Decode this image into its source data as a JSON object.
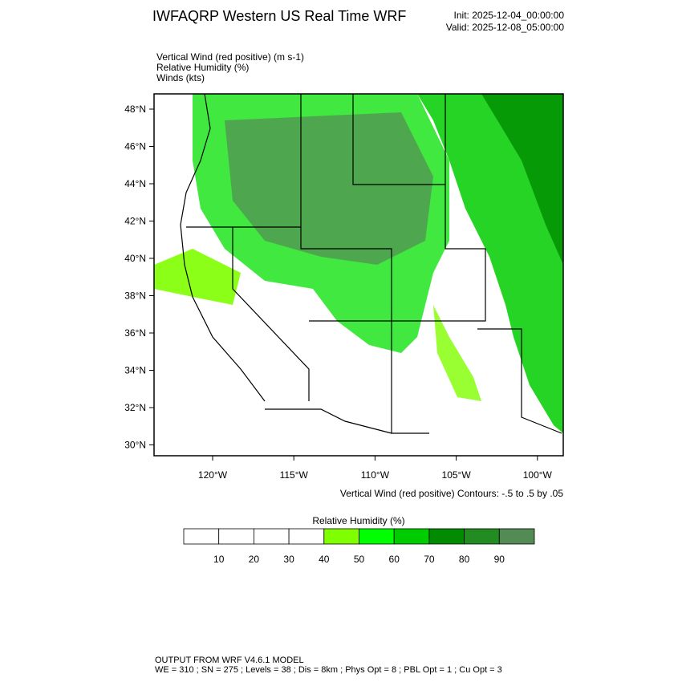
{
  "header": {
    "title": "IWFAQRP Western US Real Time WRF",
    "init": "Init: 2025-12-04_00:00:00",
    "valid": "Valid: 2025-12-08_05:00:00"
  },
  "fields": [
    "Vertical Wind (red positive)   (m s-1)",
    "Relative Humidity   (%)",
    "Winds   (kts)"
  ],
  "map": {
    "lat_labels": [
      "48°N",
      "46°N",
      "44°N",
      "42°N",
      "40°N",
      "38°N",
      "36°N",
      "34°N",
      "32°N",
      "30°N"
    ],
    "lon_labels": [
      "120°W",
      "115°W",
      "110°W",
      "105°W",
      "100°W"
    ],
    "contour_note": "Vertical Wind (red positive) Contours: -.5 to .5 by .05"
  },
  "colorbar": {
    "title": "Relative Humidity  (%)",
    "levels": [
      10,
      20,
      30,
      40,
      50,
      60,
      70,
      80,
      90
    ],
    "colors": [
      "#ffffff",
      "#ffffff",
      "#ffffff",
      "#ffffff",
      "#80ff00",
      "#00ff00",
      "#00cd00",
      "#008b00",
      "#228b22",
      "#548b54"
    ]
  },
  "footer": [
    "OUTPUT FROM WRF V4.6.1 MODEL",
    "WE = 310 ; SN = 275 ; Levels = 38 ; Dis = 8km ; Phys Opt = 8 ; PBL Opt = 1 ; Cu Opt = 3"
  ]
}
